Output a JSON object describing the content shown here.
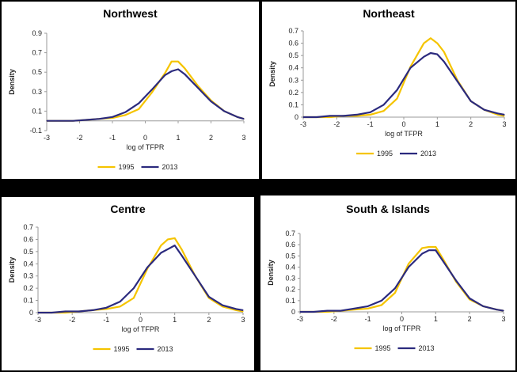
{
  "chart_data": [
    {
      "type": "line",
      "title": "Northwest",
      "xlabel": "log of TFPR",
      "ylabel": "Density",
      "xlim": [
        -3,
        3
      ],
      "ylim": [
        -0.1,
        0.9
      ],
      "xticks": [
        -3,
        -2,
        -1,
        0,
        1,
        2,
        3
      ],
      "yticks": [
        -0.1,
        0.1,
        0.3,
        0.5,
        0.7,
        0.9
      ],
      "x": [
        -3.0,
        -2.6,
        -2.2,
        -1.8,
        -1.4,
        -1.0,
        -0.6,
        -0.2,
        0.2,
        0.6,
        0.8,
        1.0,
        1.2,
        1.6,
        2.0,
        2.4,
        2.8,
        3.0
      ],
      "legend": "bottom",
      "series": [
        {
          "name": "1995",
          "color": "#F5C400",
          "values": [
            0.0,
            0.0,
            0.0,
            0.01,
            0.02,
            0.03,
            0.06,
            0.12,
            0.29,
            0.49,
            0.61,
            0.61,
            0.54,
            0.36,
            0.21,
            0.1,
            0.04,
            0.02
          ]
        },
        {
          "name": "2013",
          "color": "#2B2A7E",
          "values": [
            0.0,
            0.0,
            0.0,
            0.01,
            0.02,
            0.04,
            0.09,
            0.18,
            0.32,
            0.47,
            0.51,
            0.53,
            0.48,
            0.34,
            0.2,
            0.1,
            0.04,
            0.02
          ]
        }
      ]
    },
    {
      "type": "line",
      "title": "Northeast",
      "xlabel": "log of TFPR",
      "ylabel": "Density",
      "xlim": [
        -3,
        3
      ],
      "ylim": [
        0,
        0.7
      ],
      "xticks": [
        -3,
        -2,
        -1,
        0,
        1,
        2,
        3
      ],
      "yticks": [
        0,
        0.1,
        0.2,
        0.3,
        0.4,
        0.5,
        0.6,
        0.7
      ],
      "x": [
        -3.0,
        -2.6,
        -2.2,
        -1.8,
        -1.4,
        -1.0,
        -0.6,
        -0.2,
        0.2,
        0.6,
        0.8,
        1.0,
        1.2,
        1.6,
        2.0,
        2.4,
        2.8,
        3.0
      ],
      "legend": "bottom",
      "series": [
        {
          "name": "1995",
          "color": "#F5C400",
          "values": [
            0.0,
            0.0,
            0.0,
            0.01,
            0.01,
            0.02,
            0.05,
            0.15,
            0.41,
            0.6,
            0.64,
            0.6,
            0.53,
            0.3,
            0.13,
            0.06,
            0.02,
            0.01
          ]
        },
        {
          "name": "2013",
          "color": "#2B2A7E",
          "values": [
            0.0,
            0.0,
            0.01,
            0.01,
            0.02,
            0.04,
            0.1,
            0.22,
            0.4,
            0.49,
            0.52,
            0.51,
            0.45,
            0.29,
            0.13,
            0.06,
            0.03,
            0.02
          ]
        }
      ]
    },
    {
      "type": "line",
      "title": "Centre",
      "xlabel": "log of TFPR",
      "ylabel": "Density",
      "xlim": [
        -3,
        3
      ],
      "ylim": [
        0,
        0.7
      ],
      "xticks": [
        -3,
        -2,
        -1,
        0,
        1,
        2,
        3
      ],
      "yticks": [
        0,
        0.1,
        0.2,
        0.3,
        0.4,
        0.5,
        0.6,
        0.7
      ],
      "x": [
        -3.0,
        -2.6,
        -2.2,
        -1.8,
        -1.4,
        -1.0,
        -0.6,
        -0.2,
        0.2,
        0.6,
        0.8,
        1.0,
        1.2,
        1.6,
        2.0,
        2.4,
        2.8,
        3.0
      ],
      "legend": "bottom",
      "series": [
        {
          "name": "1995",
          "color": "#F5C400",
          "values": [
            0.0,
            0.0,
            0.0,
            0.01,
            0.02,
            0.03,
            0.05,
            0.12,
            0.36,
            0.55,
            0.6,
            0.61,
            0.52,
            0.3,
            0.12,
            0.05,
            0.02,
            0.01
          ]
        },
        {
          "name": "2013",
          "color": "#2B2A7E",
          "values": [
            0.0,
            0.0,
            0.01,
            0.01,
            0.02,
            0.04,
            0.09,
            0.2,
            0.37,
            0.49,
            0.52,
            0.55,
            0.47,
            0.3,
            0.13,
            0.06,
            0.03,
            0.02
          ]
        }
      ]
    },
    {
      "type": "line",
      "title": "South & Islands",
      "xlabel": "log of TFPR",
      "ylabel": "Density",
      "xlim": [
        -3,
        3
      ],
      "ylim": [
        0,
        0.7
      ],
      "xticks": [
        -3,
        -2,
        -1,
        0,
        1,
        2,
        3
      ],
      "yticks": [
        0,
        0.1,
        0.2,
        0.3,
        0.4,
        0.5,
        0.6,
        0.7
      ],
      "x": [
        -3.0,
        -2.6,
        -2.2,
        -1.8,
        -1.4,
        -1.0,
        -0.6,
        -0.2,
        0.2,
        0.6,
        0.8,
        1.0,
        1.2,
        1.6,
        2.0,
        2.4,
        2.8,
        3.0
      ],
      "legend": "bottom",
      "series": [
        {
          "name": "1995",
          "color": "#F5C400",
          "values": [
            0.0,
            0.0,
            0.0,
            0.01,
            0.02,
            0.03,
            0.06,
            0.17,
            0.43,
            0.57,
            0.58,
            0.58,
            0.48,
            0.27,
            0.11,
            0.05,
            0.02,
            0.01
          ]
        },
        {
          "name": "2013",
          "color": "#2B2A7E",
          "values": [
            0.0,
            0.0,
            0.01,
            0.01,
            0.03,
            0.05,
            0.1,
            0.21,
            0.4,
            0.52,
            0.55,
            0.55,
            0.46,
            0.28,
            0.12,
            0.05,
            0.02,
            0.01
          ]
        }
      ]
    }
  ]
}
